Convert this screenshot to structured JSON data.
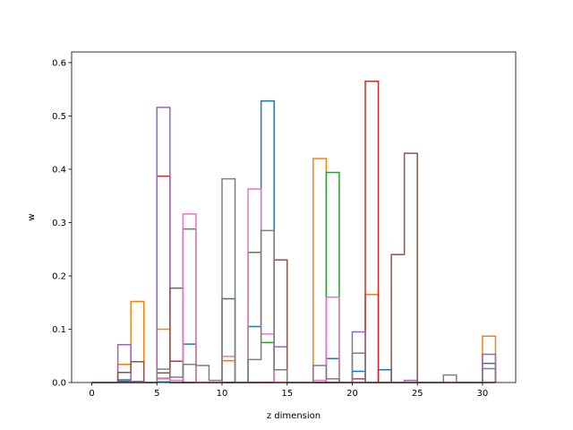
{
  "chart_data": {
    "type": "step-histogram",
    "title": "",
    "xlabel": "z dimension",
    "ylabel": "w",
    "xlim": [
      -1.55,
      32.55
    ],
    "ylim": [
      0,
      0.62
    ],
    "xticks": [
      0,
      5,
      10,
      15,
      20,
      25,
      30
    ],
    "yticks": [
      0.0,
      0.1,
      0.2,
      0.3,
      0.4,
      0.5,
      0.6
    ],
    "ytick_labels": [
      "0.0",
      "0.1",
      "0.2",
      "0.3",
      "0.4",
      "0.5",
      "0.6"
    ],
    "grid": false,
    "x_range": [
      0,
      31
    ],
    "series": [
      {
        "color": "#1f77b4",
        "values": [
          0,
          0,
          0.005,
          0,
          0,
          0.001,
          0,
          0.072,
          0,
          0,
          0.157,
          0,
          0.105,
          0.528,
          0,
          0,
          0,
          0,
          0.045,
          0,
          0.021,
          0,
          0.024,
          0,
          0,
          0,
          0,
          0,
          0,
          0,
          0.036
        ]
      },
      {
        "color": "#ff7f0e",
        "values": [
          0,
          0,
          0.034,
          0.152,
          0,
          0.1,
          0,
          0,
          0,
          0,
          0.041,
          0,
          0,
          0,
          0,
          0,
          0,
          0.42,
          0,
          0,
          0,
          0.165,
          0,
          0,
          0,
          0,
          0,
          0,
          0,
          0,
          0.087
        ]
      },
      {
        "color": "#2ca02c",
        "values": [
          0,
          0,
          0,
          0,
          0,
          0.008,
          0,
          0.288,
          0,
          0,
          0,
          0,
          0.244,
          0.075,
          0,
          0,
          0,
          0,
          0.394,
          0,
          0,
          0,
          0,
          0,
          0,
          0,
          0,
          0,
          0,
          0,
          0
        ]
      },
      {
        "color": "#d62728",
        "values": [
          0,
          0,
          0.002,
          0.001,
          0,
          0.387,
          0.04,
          0,
          0,
          0,
          0,
          0,
          0,
          0,
          0,
          0,
          0,
          0,
          0,
          0,
          0,
          0.565,
          0,
          0,
          0,
          0,
          0,
          0,
          0,
          0,
          0
        ]
      },
      {
        "color": "#9467bd",
        "values": [
          0,
          0,
          0.071,
          0.002,
          0,
          0.516,
          0,
          0,
          0,
          0,
          0,
          0,
          0,
          0,
          0.067,
          0,
          0,
          0,
          0,
          0,
          0.095,
          0,
          0,
          0,
          0.004,
          0,
          0,
          0,
          0,
          0,
          0.053
        ]
      },
      {
        "color": "#8c564b",
        "values": [
          0,
          0,
          0.019,
          0.039,
          0,
          0.018,
          0.177,
          0,
          0,
          0,
          0,
          0,
          0,
          0,
          0.23,
          0,
          0,
          0,
          0,
          0,
          0.007,
          0,
          0,
          0.24,
          0.43,
          0,
          0,
          0,
          0,
          0,
          0
        ]
      },
      {
        "color": "#e377c2",
        "values": [
          0,
          0,
          0,
          0,
          0,
          0.007,
          0.004,
          0.316,
          0,
          0,
          0.049,
          0,
          0.363,
          0.091,
          0,
          0,
          0,
          0.004,
          0.16,
          0,
          0,
          0,
          0,
          0,
          0,
          0,
          0,
          0,
          0,
          0,
          0
        ]
      },
      {
        "color": "#7f7f7f",
        "values": [
          0,
          0,
          0,
          0,
          0,
          0.025,
          0.01,
          0.034,
          0.032,
          0.004,
          0.382,
          0,
          0.043,
          0.285,
          0.024,
          0,
          0,
          0.032,
          0.007,
          0,
          0.055,
          0,
          0,
          0,
          0,
          0,
          0,
          0.014,
          0,
          0,
          0.026
        ]
      }
    ]
  }
}
